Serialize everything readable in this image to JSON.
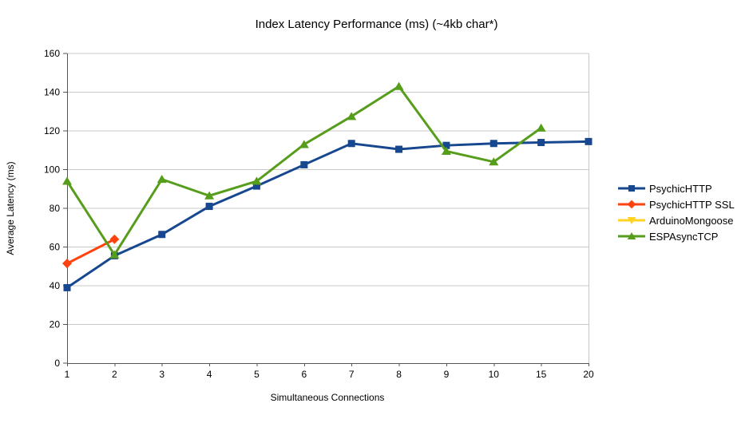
{
  "title": "Index Latency Performance (ms) (~4kb char*)",
  "chart_data": {
    "type": "line",
    "title": "Index Latency Performance (ms) (~4kb char*)",
    "xlabel": "Simultaneous Connections",
    "ylabel": "Average Latency (ms)",
    "categories": [
      "1",
      "2",
      "3",
      "4",
      "5",
      "6",
      "7",
      "8",
      "9",
      "10",
      "15",
      "20"
    ],
    "ylim": [
      0,
      160
    ],
    "ytick_step": 20,
    "grid": "horizontal",
    "legend_position": "right",
    "colors": {
      "grid": "#c8c8c8",
      "axis": "#555555",
      "text": "#000000",
      "background": "#ffffff"
    },
    "series": [
      {
        "name": "PsychicHTTP",
        "color": "#17478f",
        "marker": "square",
        "values": [
          39,
          55.5,
          66.5,
          81,
          91.5,
          102.5,
          113.5,
          110.5,
          112.5,
          113.5,
          114,
          114.5
        ]
      },
      {
        "name": "PsychicHTTP SSL",
        "color": "#ff420e",
        "marker": "diamond",
        "values": [
          51.5,
          64,
          null,
          null,
          null,
          null,
          null,
          null,
          null,
          null,
          null,
          null
        ]
      },
      {
        "name": "ArduinoMongoose",
        "color": "#ffd320",
        "marker": "triangle-down",
        "values": [
          null,
          null,
          null,
          null,
          null,
          null,
          null,
          null,
          null,
          null,
          null,
          null
        ]
      },
      {
        "name": "ESPAsyncTCP",
        "color": "#579d1c",
        "marker": "triangle-up",
        "values": [
          94,
          56,
          95,
          86.5,
          94,
          113,
          127.5,
          143,
          109.5,
          104,
          121.5,
          null
        ]
      }
    ]
  }
}
